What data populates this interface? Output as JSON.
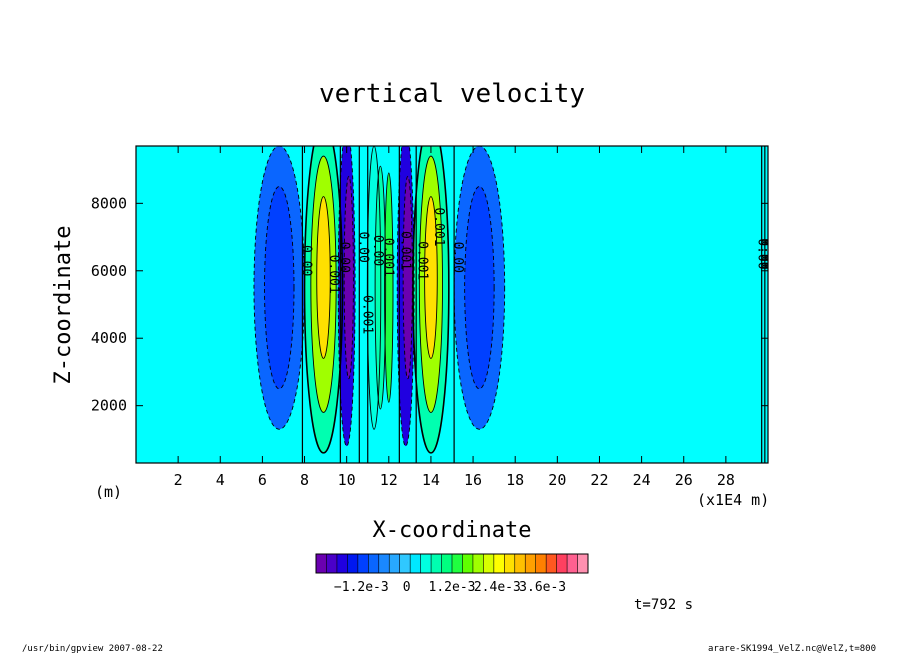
{
  "chart_data": {
    "type": "heatmap",
    "title": "vertical velocity",
    "xlabel": "X-coordinate",
    "ylabel": "Z-coordinate",
    "x_unit_label": "(m)",
    "x_scale_label": "(x1E4 m)",
    "xlim": [
      0,
      30
    ],
    "ylim": [
      300,
      9700
    ],
    "x_ticks": [
      "2",
      "4",
      "6",
      "8",
      "10",
      "12",
      "14",
      "16",
      "18",
      "20",
      "22",
      "24",
      "26",
      "28"
    ],
    "y_ticks": [
      "2000",
      "4000",
      "6000",
      "8000"
    ],
    "colorbar": {
      "ticks": [
        "−1.2e-3",
        "0",
        "1.2e-3",
        "2.4e-3",
        "3.6e-3"
      ],
      "tick_values": [
        -0.0012,
        0,
        0.0012,
        0.0024,
        0.0036
      ],
      "range": [
        -0.0024,
        0.0048
      ],
      "colors": [
        "#6a00b0",
        "#4a00c8",
        "#2000e0",
        "#0018f0",
        "#0040ff",
        "#0a66ff",
        "#1a88ff",
        "#28a8ff",
        "#30c8ff",
        "#00e8ff",
        "#00ffe0",
        "#00ffb0",
        "#00ff80",
        "#20ff40",
        "#60ff00",
        "#a0ff00",
        "#d8ff00",
        "#ffff00",
        "#ffe000",
        "#ffc000",
        "#ffa000",
        "#ff8000",
        "#ff5820",
        "#ff4060",
        "#ff6090",
        "#ff90b0"
      ]
    },
    "background_color": "#00ffff",
    "contour_labels": [
      "0.00",
      "0.00",
      "0.00",
      "0.00",
      "0.001",
      "0.001",
      "0.001",
      "0.001",
      "0.001",
      "0.001",
      "0.00",
      "0.00",
      "0.00",
      "0.00"
    ],
    "bands": [
      {
        "x": 6.8,
        "z": 5500,
        "w": 1.2,
        "h": 4200,
        "value": -0.0008
      },
      {
        "x": 6.8,
        "z": 5500,
        "w": 0.7,
        "h": 3000,
        "value": -0.0012
      },
      {
        "x": 8.9,
        "z": 5500,
        "w": 0.9,
        "h": 4900,
        "value": 0.0008
      },
      {
        "x": 8.9,
        "z": 5600,
        "w": 0.6,
        "h": 3800,
        "value": 0.0018
      },
      {
        "x": 8.9,
        "z": 5800,
        "w": 0.32,
        "h": 2400,
        "value": 0.0026
      },
      {
        "x": 10.0,
        "z": 5500,
        "w": 0.4,
        "h": 4700,
        "value": -0.0018
      },
      {
        "x": 10.1,
        "z": 5800,
        "w": 0.22,
        "h": 3000,
        "value": -0.0026
      },
      {
        "x": 11.3,
        "z": 5500,
        "w": 0.32,
        "h": 4200,
        "value": 0.0004
      },
      {
        "x": 11.6,
        "z": 5500,
        "w": 0.25,
        "h": 3600,
        "value": 0.0008
      },
      {
        "x": 12.0,
        "z": 5500,
        "w": 0.2,
        "h": 3400,
        "value": 0.0012
      },
      {
        "x": 12.8,
        "z": 5500,
        "w": 0.4,
        "h": 4700,
        "value": -0.0018
      },
      {
        "x": 12.9,
        "z": 5800,
        "w": 0.22,
        "h": 3000,
        "value": -0.0026
      },
      {
        "x": 14.0,
        "z": 5500,
        "w": 0.85,
        "h": 4900,
        "value": 0.0008
      },
      {
        "x": 14.0,
        "z": 5600,
        "w": 0.55,
        "h": 3800,
        "value": 0.0018
      },
      {
        "x": 14.0,
        "z": 5800,
        "w": 0.3,
        "h": 2400,
        "value": 0.0026
      },
      {
        "x": 16.3,
        "z": 5500,
        "w": 1.2,
        "h": 4200,
        "value": -0.0008
      },
      {
        "x": 16.3,
        "z": 5500,
        "w": 0.7,
        "h": 3000,
        "value": -0.0012
      }
    ],
    "grid": false,
    "legend": "colorbar-bottom"
  },
  "annotations": {
    "time": "t=792 s",
    "footer_left": "/usr/bin/gpview  2007-08-22",
    "footer_right": "arare-SK1994_VelZ.nc@VelZ,t=800"
  }
}
